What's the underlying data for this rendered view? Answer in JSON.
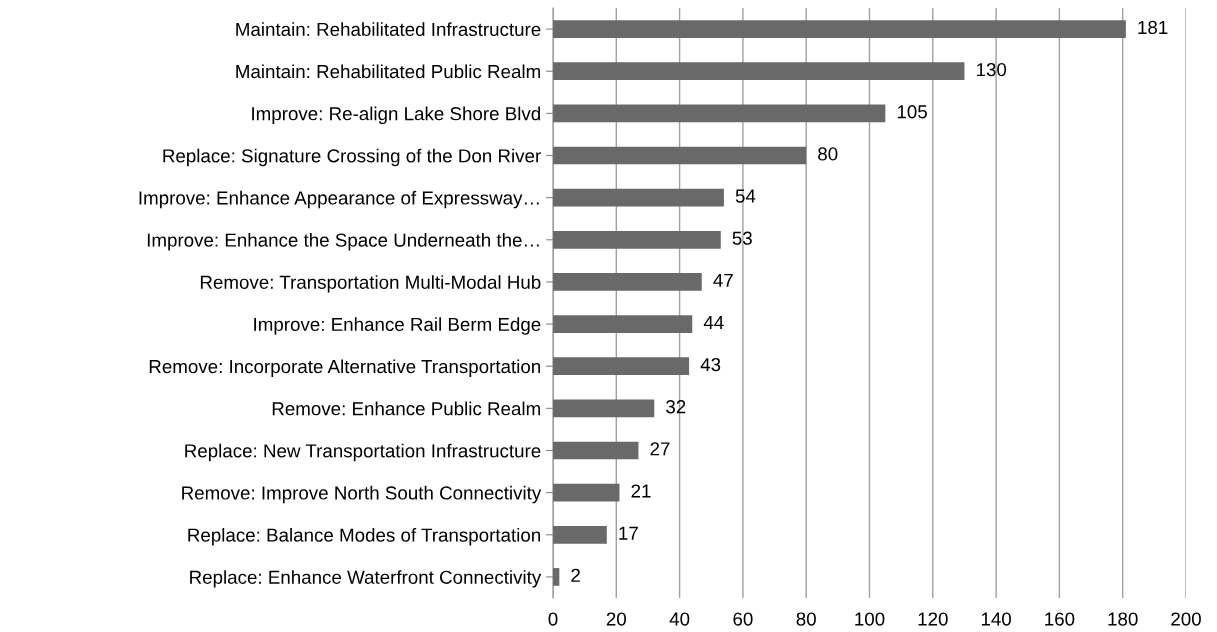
{
  "chart_data": {
    "type": "bar",
    "orientation": "horizontal",
    "categories": [
      "Maintain: Rehabilitated Infrastructure",
      "Maintain: Rehabilitated Public Realm",
      "Improve: Re-align Lake Shore Blvd",
      "Replace: Signature Crossing of the Don River",
      "Improve: Enhance Appearance of Expressway…",
      "Improve: Enhance the Space Underneath the…",
      "Remove: Transportation Multi-Modal Hub",
      "Improve: Enhance Rail Berm Edge",
      "Remove: Incorporate Alternative Transportation",
      "Remove: Enhance Public Realm",
      "Replace: New Transportation Infrastructure",
      "Remove: Improve North South Connectivity",
      "Replace: Balance Modes of Transportation",
      "Replace: Enhance Waterfront Connectivity"
    ],
    "values": [
      181,
      130,
      105,
      80,
      54,
      53,
      47,
      44,
      43,
      32,
      27,
      21,
      17,
      2
    ],
    "color": "#696969",
    "xlim": [
      0,
      200
    ],
    "xticks": [
      0,
      20,
      40,
      60,
      80,
      100,
      120,
      140,
      160,
      180,
      200
    ],
    "grid": "x",
    "data_labels": true
  }
}
